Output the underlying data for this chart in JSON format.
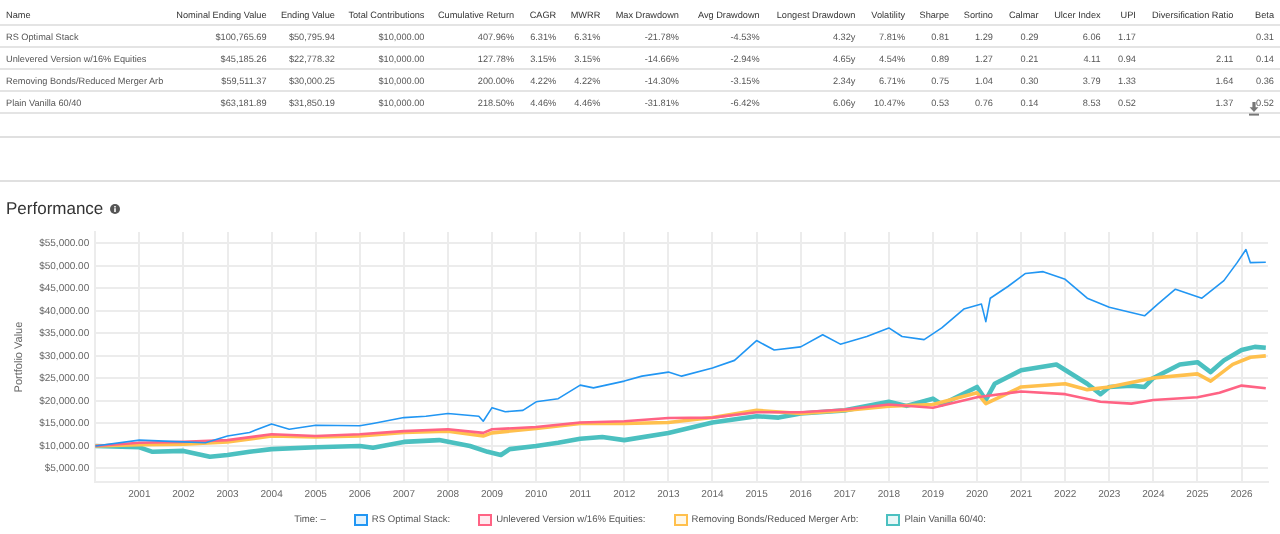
{
  "chart_data": [
    {
      "type": "other",
      "categories": [
        "Name",
        "Nominal Ending Value",
        "Ending Value",
        "Total Contributions",
        "Cumulative Return",
        "CAGR",
        "MWRR",
        "Max Drawdown",
        "Avg Drawdown",
        "Longest Drawdown",
        "Volatility",
        "Sharpe",
        "Sortino",
        "Calmar",
        "Ulcer Index",
        "UPI",
        "Diversification Ratio",
        "Beta"
      ],
      "annotations": [
        "RS Optimal Stack",
        "$100,765.69",
        "$50,795.94",
        "$10,000.00",
        "407.96%",
        "6.31%",
        "6.31%",
        "-21.78%",
        "-4.53%",
        "4.32y",
        "7.81%",
        "0.81",
        "1.29",
        "0.29",
        "6.06",
        "1.17",
        null,
        "0.31",
        "Unlevered Version w/16% Equities",
        "$45,185.26",
        "$22,778.32",
        "$10,000.00",
        "127.78%",
        "3.15%",
        "3.15%",
        "-14.66%",
        "-2.94%",
        "4.65y",
        "4.54%",
        "0.89",
        "1.27",
        "0.21",
        "4.11",
        "0.94",
        "2.11",
        "0.14",
        "Removing Bonds/Reduced Merger Arb",
        "$59,511.37",
        "$30,000.25",
        "$10,000.00",
        "200.00%",
        "4.22%",
        "4.22%",
        "-14.30%",
        "-3.15%",
        "2.34y",
        "6.71%",
        "0.75",
        "1.04",
        "0.30",
        "3.79",
        "1.33",
        "1.64",
        "0.36",
        "Plain Vanilla 60/40",
        "$63,181.89",
        "$31,850.19",
        "$10,000.00",
        "218.50%",
        "4.46%",
        "4.46%",
        "-31.81%",
        "-6.42%",
        "6.06y",
        "10.47%",
        "0.53",
        "0.76",
        "0.14",
        "8.53",
        "0.52",
        "1.37",
        "0.52"
      ]
    },
    {
      "type": "line",
      "title": "Performance",
      "ylabel": "Portfolio Value",
      "legend_title": "Time: –",
      "legend": "bottom",
      "grid": true,
      "marker": "none",
      "line_style": "solid",
      "xlim": [
        2000,
        2026.6
      ],
      "xticks": [
        2001,
        2002,
        2003,
        2004,
        2005,
        2006,
        2007,
        2008,
        2009,
        2010,
        2011,
        2012,
        2013,
        2014,
        2015,
        2016,
        2017,
        2018,
        2019,
        2020,
        2021,
        2022,
        2023,
        2024,
        2025,
        2026
      ],
      "ylim": [
        2000,
        57500
      ],
      "yticks": [
        {
          "value": 5000,
          "label": "$5,000.00"
        },
        {
          "value": 10000,
          "label": "$10,000.00"
        },
        {
          "value": 15000,
          "label": "$15,000.00"
        },
        {
          "value": 20000,
          "label": "$20,000.00"
        },
        {
          "value": 25000,
          "label": "$25,000.00"
        },
        {
          "value": 30000,
          "label": "$30,000.00"
        },
        {
          "value": 35000,
          "label": "$35,000.00"
        },
        {
          "value": 40000,
          "label": "$40,000.00"
        },
        {
          "value": 45000,
          "label": "$45,000.00"
        },
        {
          "value": 50000,
          "label": "$50,000.00"
        },
        {
          "value": 55000,
          "label": "$55,000.00"
        }
      ],
      "series": [
        {
          "name": "RS Optimal Stack:",
          "color": "#2196f3",
          "x": [
            2000,
            2001,
            2002,
            2002.5,
            2003,
            2003.5,
            2004,
            2004.4,
            2005,
            2006,
            2006.3,
            2007,
            2007.5,
            2008,
            2008.7,
            2008.8,
            2009,
            2009.3,
            2009.7,
            2010,
            2010.5,
            2011,
            2011.3,
            2012,
            2012.4,
            2013,
            2013.3,
            2014,
            2014.5,
            2015,
            2015.4,
            2016,
            2016.5,
            2016.9,
            2017.5,
            2018,
            2018.3,
            2018.8,
            2019.2,
            2019.7,
            2020.1,
            2020.2,
            2020.3,
            2020.7,
            2021.1,
            2021.5,
            2022,
            2022.5,
            2023,
            2023.8,
            2024.1,
            2024.5,
            2025.1,
            2025.6,
            2025.9,
            2026.1,
            2026.2,
            2026.55
          ],
          "values": [
            10000,
            11300,
            10900,
            10700,
            12200,
            13000,
            14900,
            13700,
            14600,
            14500,
            15000,
            16300,
            16600,
            17200,
            16600,
            15500,
            18500,
            17600,
            17900,
            19800,
            20500,
            23500,
            22900,
            24400,
            25500,
            26400,
            25500,
            27300,
            29000,
            33400,
            31300,
            32000,
            34700,
            32600,
            34300,
            36200,
            34300,
            33600,
            36200,
            40400,
            41500,
            37600,
            42800,
            45400,
            48300,
            48700,
            47000,
            42800,
            40800,
            38900,
            41500,
            44800,
            42800,
            46700,
            50700,
            53600,
            50700,
            50800
          ]
        },
        {
          "name": "Unlevered Version w/16% Equities:",
          "color": "#ff6384",
          "x": [
            2000,
            2001,
            2002,
            2003,
            2004,
            2005,
            2006,
            2007,
            2008,
            2008.8,
            2009,
            2010,
            2011,
            2012,
            2013,
            2014,
            2015,
            2016,
            2017,
            2018,
            2019,
            2020,
            2021,
            2022,
            2022.8,
            2023.5,
            2024,
            2025,
            2025.5,
            2026,
            2026.55
          ],
          "values": [
            10000,
            10700,
            10900,
            11300,
            12600,
            12200,
            12600,
            13300,
            13700,
            12900,
            13700,
            14200,
            15200,
            15500,
            16200,
            16300,
            17500,
            17500,
            18100,
            19200,
            18500,
            20800,
            22100,
            21500,
            19800,
            19400,
            20200,
            20800,
            21800,
            23400,
            22800
          ]
        },
        {
          "name": "Removing Bonds/Reduced Merger Arb:",
          "color": "#ffc04d",
          "x": [
            2000,
            2001,
            2002,
            2003,
            2004,
            2005,
            2006,
            2007,
            2008,
            2008.8,
            2009,
            2010,
            2011,
            2012,
            2013,
            2014,
            2015,
            2016,
            2017,
            2018,
            2019,
            2020,
            2020.2,
            2021,
            2022,
            2022.5,
            2023,
            2024,
            2025,
            2025.3,
            2025.8,
            2026.2,
            2026.55
          ],
          "values": [
            10000,
            10300,
            10400,
            10900,
            12200,
            12000,
            12200,
            13000,
            13300,
            12200,
            12900,
            13900,
            15000,
            15000,
            15200,
            16300,
            17900,
            17200,
            17900,
            18800,
            19200,
            21800,
            19400,
            23100,
            23800,
            22500,
            23100,
            25100,
            26000,
            24400,
            28100,
            29700,
            30000
          ]
        },
        {
          "name": "Plain Vanilla 60/40:",
          "color": "#4bc0c0",
          "x": [
            2000,
            2001,
            2001.3,
            2002,
            2002.6,
            2003,
            2003.5,
            2004,
            2005,
            2006,
            2006.3,
            2007,
            2007.8,
            2008.5,
            2008.9,
            2009.2,
            2009.4,
            2010,
            2010.5,
            2011,
            2011.5,
            2012,
            2013,
            2014,
            2015,
            2015.5,
            2016,
            2017,
            2018,
            2018.4,
            2019,
            2019.2,
            2020,
            2020.2,
            2020.4,
            2021,
            2021.8,
            2022.5,
            2022.8,
            2023,
            2023.5,
            2023.8,
            2024,
            2024.6,
            2025,
            2025.3,
            2025.6,
            2026,
            2026.3,
            2026.55
          ],
          "values": [
            10000,
            9700,
            8700,
            8900,
            7600,
            8000,
            8700,
            9300,
            9700,
            10000,
            9600,
            10900,
            11300,
            10000,
            8700,
            8000,
            9300,
            10000,
            10700,
            11600,
            12000,
            11300,
            12900,
            15200,
            16600,
            16300,
            17200,
            17900,
            19800,
            18900,
            20500,
            19200,
            23100,
            20200,
            23800,
            26800,
            28100,
            23800,
            21500,
            23100,
            23400,
            23100,
            25100,
            28100,
            28600,
            26400,
            29000,
            31300,
            32000,
            31800
          ]
        }
      ]
    }
  ]
}
